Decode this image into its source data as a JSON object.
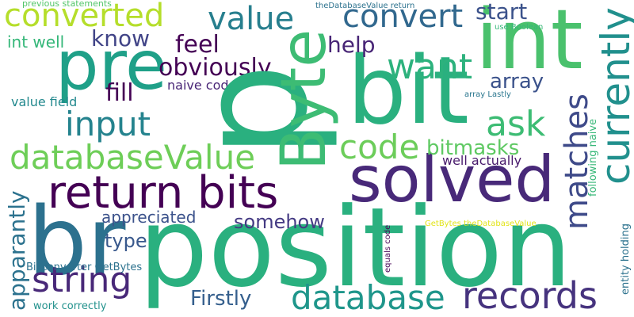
{
  "words": [
    {
      "text": "position",
      "color": "#2ab07f"
    },
    {
      "text": "p",
      "color": "#2ab07f"
    },
    {
      "text": "br",
      "color": "#2c718e"
    },
    {
      "text": "bit",
      "color": "#2ab07f"
    },
    {
      "text": "pre",
      "color": "#1fa088"
    },
    {
      "text": "int",
      "color": "#4ac16d"
    },
    {
      "text": "Byte",
      "color": "#3dbc74"
    },
    {
      "text": "solved",
      "color": "#482979"
    },
    {
      "text": "return bits",
      "color": "#440154"
    },
    {
      "text": "records",
      "color": "#46337e"
    },
    {
      "text": "database",
      "color": "#1f968b"
    },
    {
      "text": "databaseValue",
      "color": "#6ece58"
    },
    {
      "text": "converted",
      "color": "#b5de2b"
    },
    {
      "text": "convert",
      "color": "#31688e"
    },
    {
      "text": "value",
      "color": "#277f8e"
    },
    {
      "text": "want",
      "color": "#2db27d"
    },
    {
      "text": "input",
      "color": "#25838e"
    },
    {
      "text": "code",
      "color": "#6ccd5a"
    },
    {
      "text": "ask",
      "color": "#3dbc74"
    },
    {
      "text": "string",
      "color": "#482878"
    },
    {
      "text": "currently",
      "color": "#21908d"
    },
    {
      "text": "matches",
      "color": "#3e4a89"
    },
    {
      "text": "obviously",
      "color": "#440154"
    },
    {
      "text": "start",
      "color": "#3b528b"
    },
    {
      "text": "feel",
      "color": "#440154"
    },
    {
      "text": "know",
      "color": "#414487"
    },
    {
      "text": "help",
      "color": "#482576"
    },
    {
      "text": "array",
      "color": "#3b528b"
    },
    {
      "text": "fill",
      "color": "#440154"
    },
    {
      "text": "bitmasks",
      "color": "#5ec962"
    },
    {
      "text": "somehow",
      "color": "#443a83"
    },
    {
      "text": "Firstly",
      "color": "#355f8d"
    },
    {
      "text": "type",
      "color": "#38588c"
    },
    {
      "text": "appreciated",
      "color": "#3b528b"
    },
    {
      "text": "apparantly",
      "color": "#2c728e"
    },
    {
      "text": "int well",
      "color": "#35b779"
    },
    {
      "text": "naive code",
      "color": "#482576"
    },
    {
      "text": "value field",
      "color": "#23898e"
    },
    {
      "text": "well actually",
      "color": "#481a6c"
    },
    {
      "text": "BitConverter GetBytes",
      "color": "#2c728e"
    },
    {
      "text": "work correctly",
      "color": "#21918c"
    },
    {
      "text": "previous statements",
      "color": "#52c569"
    },
    {
      "text": "theDatabaseValue return",
      "color": "#2c728e"
    },
    {
      "text": "use Boolean",
      "color": "#35b779"
    },
    {
      "text": "array Lastly",
      "color": "#2a768e"
    },
    {
      "text": "following naive",
      "color": "#37b878"
    },
    {
      "text": "entity holding",
      "color": "#2c728e"
    },
    {
      "text": "equals code",
      "color": "#440154"
    },
    {
      "text": "GetBytes theDatabaseValue",
      "color": "#e2e418"
    }
  ]
}
